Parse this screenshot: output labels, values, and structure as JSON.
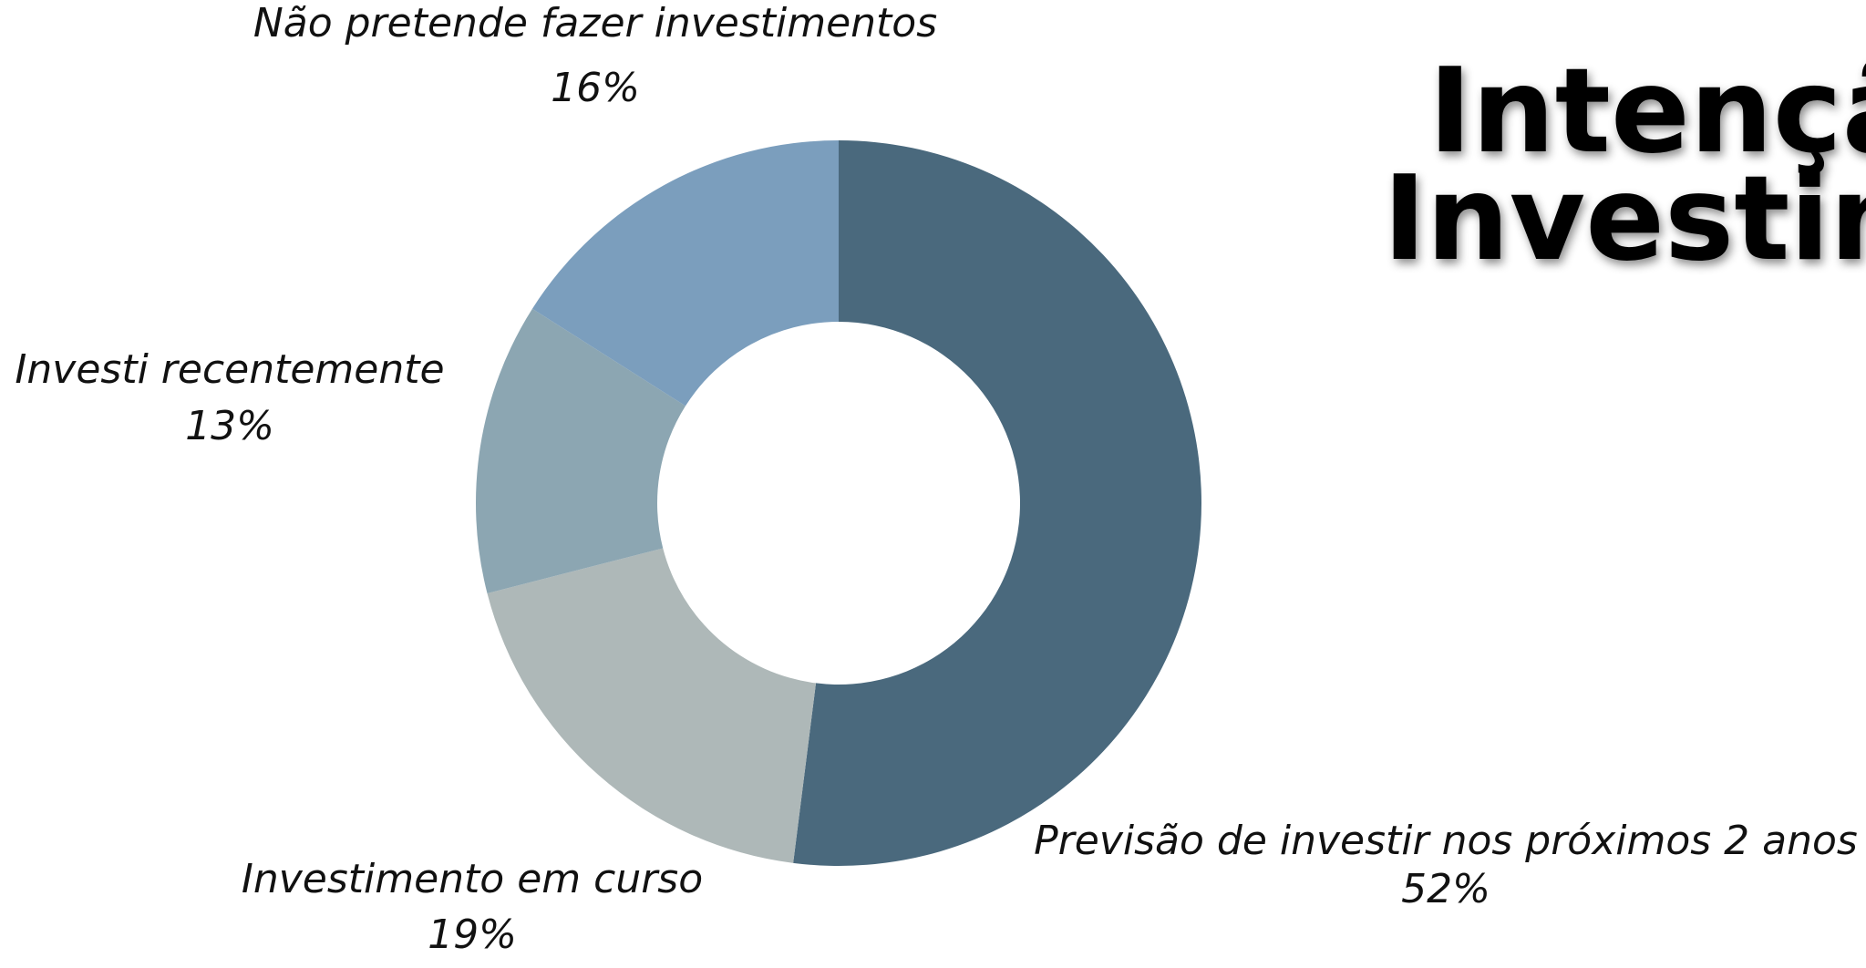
{
  "chart_data": {
    "type": "donut",
    "title_lines": [
      "Intenção de",
      "Investimento"
    ],
    "categories": [
      "Previsão de investir nos próximos 2 anos",
      "Investimento em curso",
      "Investi recentemente",
      "Não pretende fazer investimentos"
    ],
    "values": [
      52,
      19,
      13,
      16
    ],
    "value_labels": [
      "52%",
      "19%",
      "13%",
      "16%"
    ],
    "colors": [
      "#4a697d",
      "#aeb8b8",
      "#8ca6b2",
      "#7b9ebd"
    ]
  }
}
